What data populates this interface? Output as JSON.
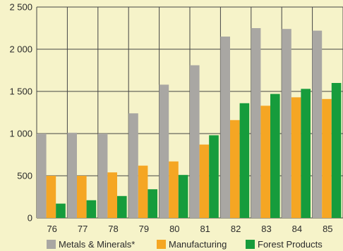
{
  "chart_data": {
    "type": "bar",
    "categories": [
      "76",
      "77",
      "78",
      "79",
      "80",
      "81",
      "82",
      "83",
      "84",
      "85"
    ],
    "series": [
      {
        "name": "Metals & Minerals*",
        "color": "#a9a7a3",
        "values": [
          1000,
          1010,
          1000,
          1240,
          1580,
          1810,
          2150,
          2250,
          2240,
          2220
        ]
      },
      {
        "name": "Manufacturing",
        "color": "#f5a623",
        "values": [
          500,
          500,
          540,
          620,
          670,
          870,
          1160,
          1330,
          1430,
          1410
        ]
      },
      {
        "name": "Forest Products",
        "color": "#169c3c",
        "values": [
          170,
          210,
          260,
          340,
          510,
          980,
          1360,
          1470,
          1530,
          1600
        ]
      }
    ],
    "yticks": [
      "0",
      "500",
      "1 000",
      "1 500",
      "2 000",
      "2 500"
    ],
    "ylim": [
      0,
      2500
    ],
    "grid": true,
    "legend": "bottom",
    "colors": {
      "background": "#f6f3c9",
      "grid": "#444444"
    }
  }
}
